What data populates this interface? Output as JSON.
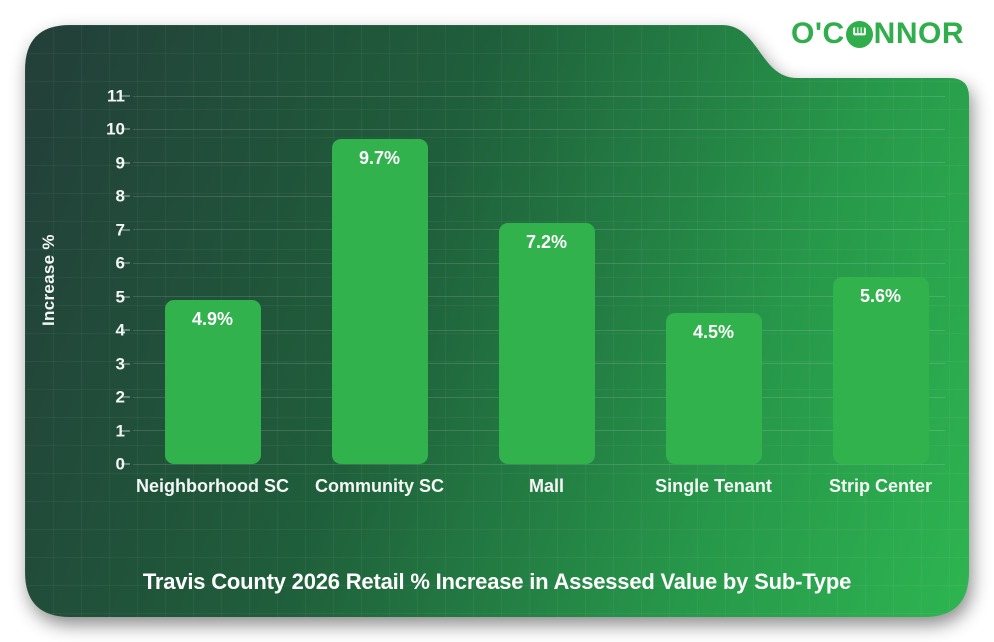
{
  "logo": {
    "part1": "O'C",
    "part2": "NNOR",
    "full_name": "O'CONNOR",
    "color": "#2fae4b"
  },
  "chart_data": {
    "type": "bar",
    "categories": [
      "Neighborhood SC",
      "Community SC",
      "Mall",
      "Single Tenant",
      "Strip Center"
    ],
    "values": [
      4.9,
      9.7,
      7.2,
      4.5,
      5.6
    ],
    "value_labels": [
      "4.9%",
      "9.7%",
      "7.2%",
      "4.5%",
      "5.6%"
    ],
    "title": "Travis County 2026 Retail % Increase in Assessed Value by Sub-Type",
    "xlabel": "",
    "ylabel": "Increase %",
    "ylim": [
      0,
      11
    ],
    "yticks": [
      "0",
      "1",
      "2",
      "3",
      "4",
      "5",
      "6",
      "7",
      "8",
      "9",
      "10",
      "11"
    ],
    "grid": "horizontal",
    "legend": "none",
    "bar_color": "#31b24d",
    "text_color": "#ffffff",
    "background": "dark-green-gradient"
  }
}
